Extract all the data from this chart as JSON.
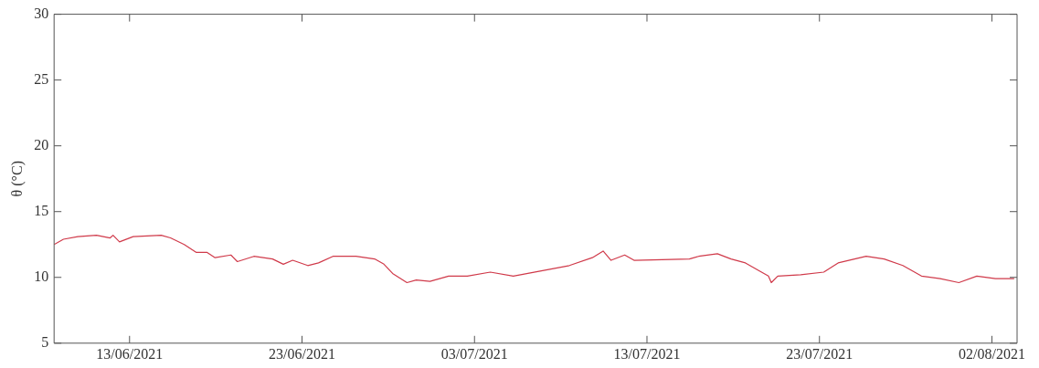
{
  "chart_data": {
    "type": "line",
    "ylabel": "θ (°C)",
    "color": "#d03a4a",
    "grid": false,
    "legend": false,
    "marker": "none",
    "line_style": "solid",
    "xlim": [
      "2021-06-08T15:00",
      "2021-08-03T11:00"
    ],
    "xticks": [
      {
        "value": "2021-06-13",
        "label": "13/06/2021"
      },
      {
        "value": "2021-06-23",
        "label": "23/06/2021"
      },
      {
        "value": "2021-07-03",
        "label": "03/07/2021"
      },
      {
        "value": "2021-07-13",
        "label": "13/07/2021"
      },
      {
        "value": "2021-07-23",
        "label": "23/07/2021"
      },
      {
        "value": "2021-08-02",
        "label": "02/08/2021"
      }
    ],
    "ylim": [
      5,
      30
    ],
    "yticks": [
      5,
      10,
      15,
      20,
      25,
      30
    ],
    "x": [
      "2021-06-08T15:00",
      "2021-06-09T04:00",
      "2021-06-10T00:00",
      "2021-06-11T02:00",
      "2021-06-11T21:00",
      "2021-06-12T01:00",
      "2021-06-12T10:00",
      "2021-06-13T05:00",
      "2021-06-14T20:00",
      "2021-06-15T09:00",
      "2021-06-16T04:00",
      "2021-06-16T21:00",
      "2021-06-17T12:00",
      "2021-06-17T23:00",
      "2021-06-18T21:00",
      "2021-06-19T06:00",
      "2021-06-20T05:00",
      "2021-06-21T07:00",
      "2021-06-21T22:00",
      "2021-06-22T11:00",
      "2021-06-23T08:00",
      "2021-06-23T23:00",
      "2021-06-24T19:00",
      "2021-06-26T03:00",
      "2021-06-27T05:00",
      "2021-06-27T18:00",
      "2021-06-28T06:00",
      "2021-06-29T02:00",
      "2021-06-29T15:00",
      "2021-06-30T10:00",
      "2021-07-01T12:00",
      "2021-07-02T14:00",
      "2021-07-03T22:00",
      "2021-07-05T06:00",
      "2021-07-06T21:00",
      "2021-07-08T12:00",
      "2021-07-09T20:00",
      "2021-07-10T11:00",
      "2021-07-10T22:00",
      "2021-07-11T17:00",
      "2021-07-12T06:00",
      "2021-07-15T11:00",
      "2021-07-16T00:00",
      "2021-07-17T02:00",
      "2021-07-17T21:00",
      "2021-07-18T17:00",
      "2021-07-19T12:00",
      "2021-07-20T01:00",
      "2021-07-20T05:00",
      "2021-07-20T14:00",
      "2021-07-21T22:00",
      "2021-07-23T06:00",
      "2021-07-24T02:00",
      "2021-07-25T17:00",
      "2021-07-26T18:00",
      "2021-07-27T20:00",
      "2021-07-28T22:00",
      "2021-07-30T00:00",
      "2021-07-31T02:00",
      "2021-08-01T03:00",
      "2021-08-02T05:00",
      "2021-08-03T07:00"
    ],
    "values": [
      12.5,
      12.9,
      13.1,
      13.2,
      13.0,
      13.2,
      12.7,
      13.1,
      13.2,
      13.0,
      12.5,
      11.9,
      11.9,
      11.5,
      11.7,
      11.2,
      11.6,
      11.4,
      11.0,
      11.3,
      10.9,
      11.1,
      11.6,
      11.6,
      11.4,
      11.0,
      10.3,
      9.6,
      9.8,
      9.7,
      10.1,
      10.1,
      10.4,
      10.1,
      10.5,
      10.9,
      11.5,
      12.0,
      11.3,
      11.7,
      11.3,
      11.4,
      11.6,
      11.8,
      11.4,
      11.1,
      10.5,
      10.1,
      9.6,
      10.1,
      10.2,
      10.4,
      11.1,
      11.6,
      11.4,
      10.9,
      10.1,
      9.9,
      9.6,
      10.1,
      9.9,
      9.9
    ]
  }
}
